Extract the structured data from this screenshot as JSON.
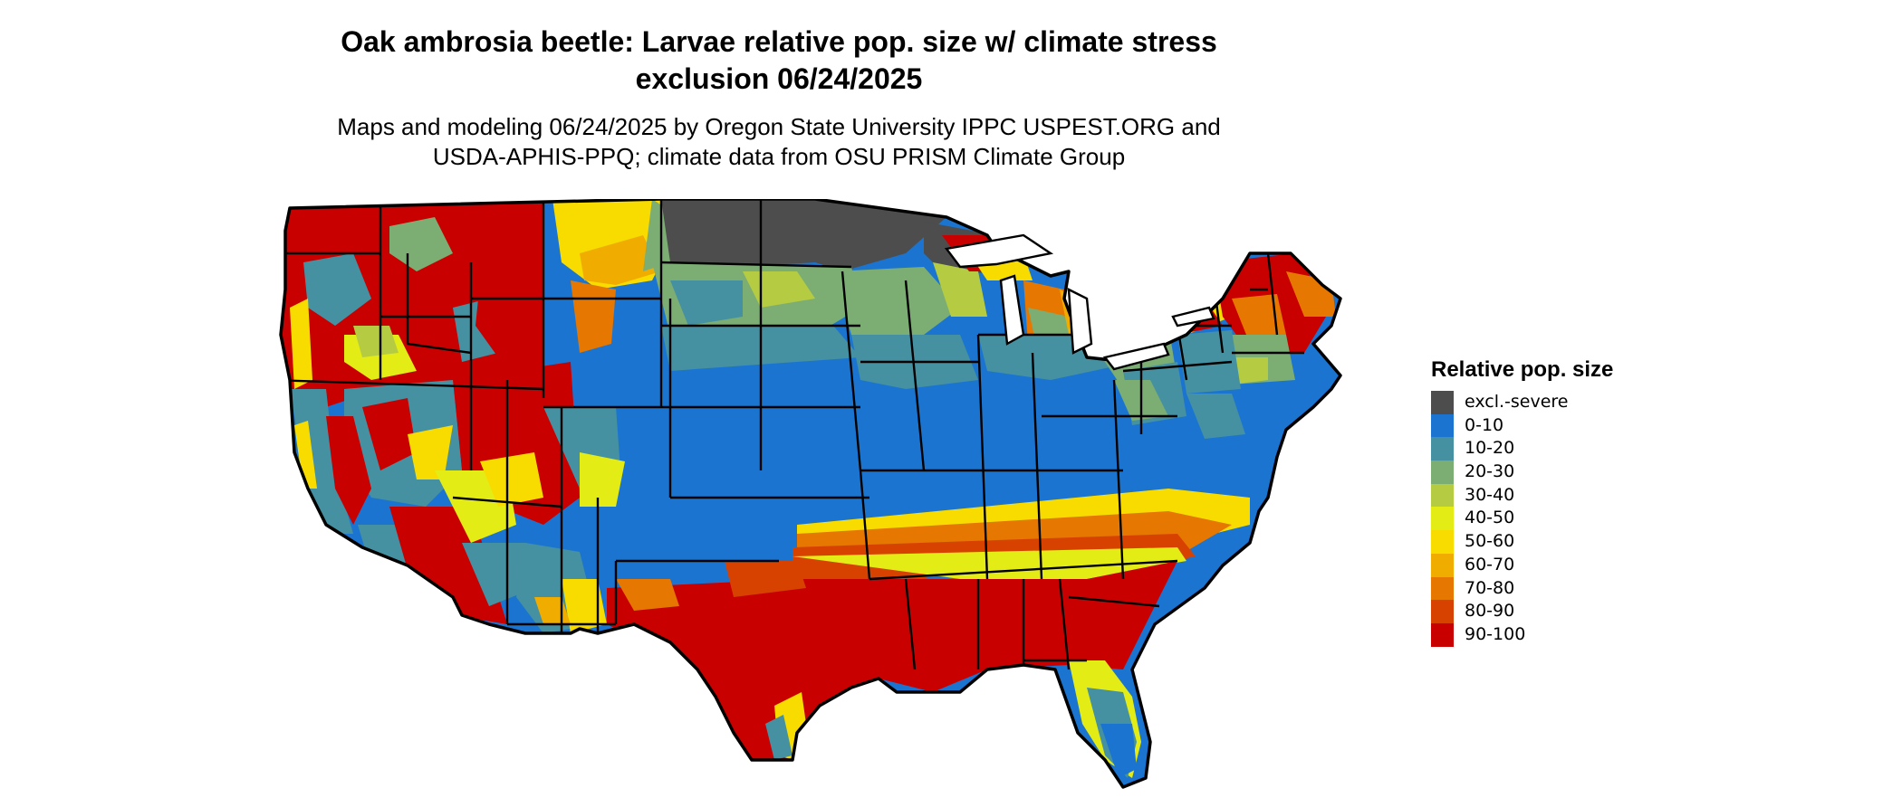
{
  "title_lines": [
    "Oak ambrosia beetle: Larvae relative pop. size w/ climate stress",
    "exclusion 06/24/2025"
  ],
  "subtitle_lines": [
    "Maps and modeling 06/24/2025 by Oregon State University IPPC USPEST.ORG and",
    "USDA-APHIS-PPQ; climate data from OSU PRISM Climate Group"
  ],
  "legend": {
    "title": "Relative pop. size",
    "items": [
      {
        "label": "excl.-severe",
        "color": "#4d4d4d"
      },
      {
        "label": "0-10",
        "color": "#1b75d0"
      },
      {
        "label": "10-20",
        "color": "#4591a2"
      },
      {
        "label": "20-30",
        "color": "#7cae74"
      },
      {
        "label": "30-40",
        "color": "#b5cc42"
      },
      {
        "label": "40-50",
        "color": "#e4ec16"
      },
      {
        "label": "50-60",
        "color": "#f8dc00"
      },
      {
        "label": "60-70",
        "color": "#f1ac00"
      },
      {
        "label": "70-80",
        "color": "#e67700"
      },
      {
        "label": "80-90",
        "color": "#d84200"
      },
      {
        "label": "90-100",
        "color": "#c80000"
      }
    ]
  },
  "map": {
    "region": "contiguous-united-states",
    "border_color": "#000000"
  }
}
